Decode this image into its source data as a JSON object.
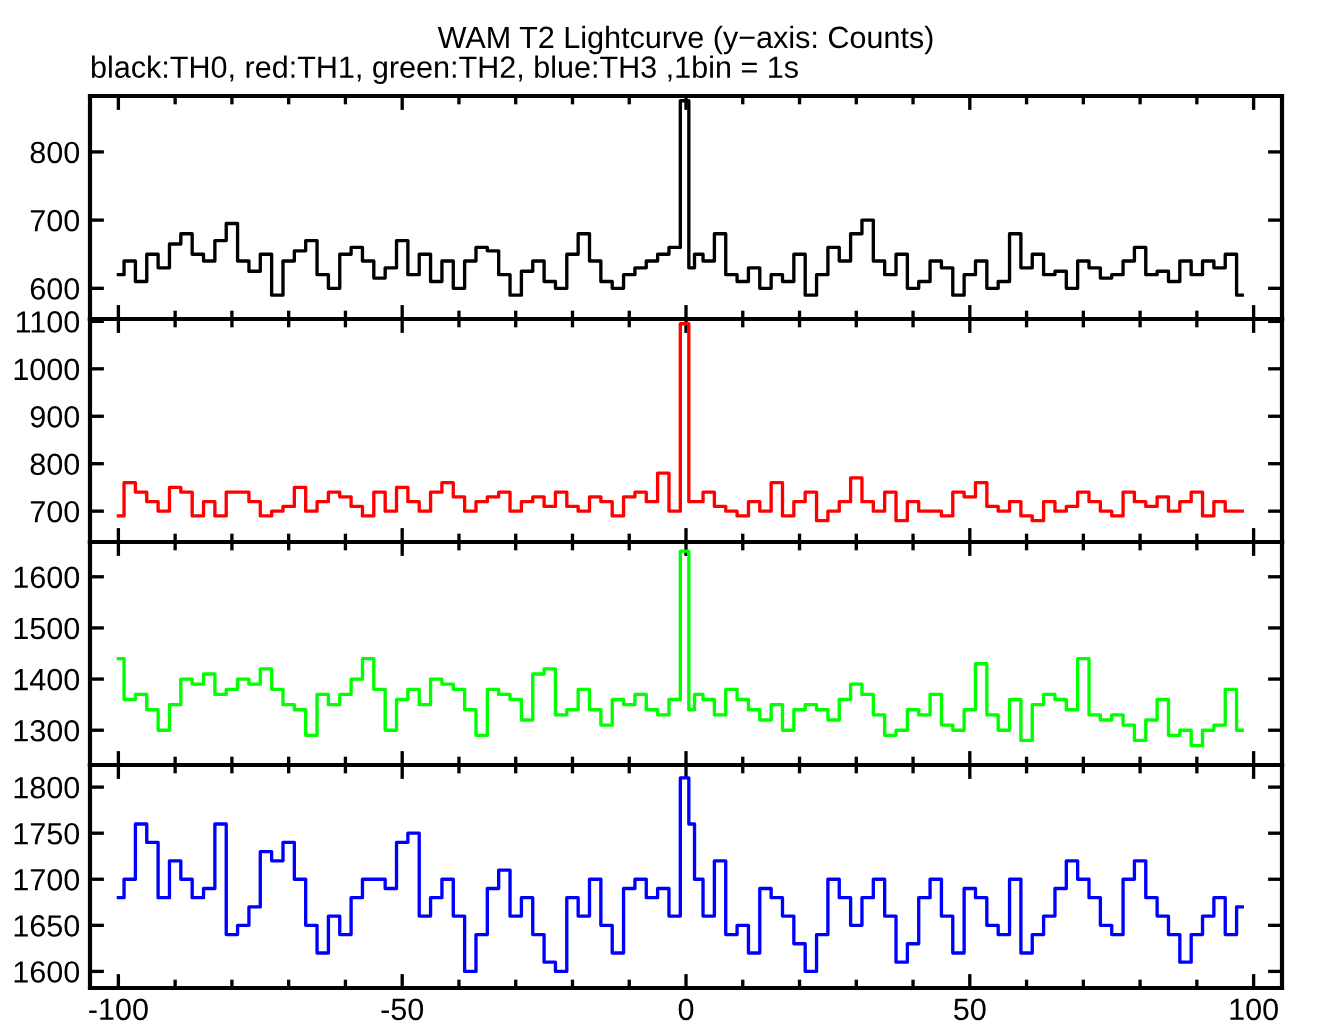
{
  "chart_data": [
    {
      "type": "step",
      "title": "WAM T2 Lightcurve (y−axis: Counts)",
      "subtitle": "black:TH0, red:TH1, green:TH2, blue:TH3 ,1bin = 1s",
      "x": [
        -100,
        -98,
        -96,
        -94,
        -92,
        -90,
        -88,
        -86,
        -84,
        -82,
        -80,
        -78,
        -76,
        -74,
        -72,
        -70,
        -68,
        -66,
        -64,
        -62,
        -60,
        -58,
        -56,
        -54,
        -52,
        -50,
        -48,
        -46,
        -44,
        -42,
        -40,
        -38,
        -36,
        -34,
        -32,
        -30,
        -28,
        -26,
        -24,
        -22,
        -20,
        -18,
        -16,
        -14,
        -12,
        -10,
        -8,
        -6,
        -4,
        -2,
        0,
        1,
        2,
        4,
        6,
        8,
        10,
        12,
        14,
        16,
        18,
        20,
        22,
        24,
        26,
        28,
        30,
        32,
        34,
        36,
        38,
        40,
        42,
        44,
        46,
        48,
        50,
        52,
        54,
        56,
        58,
        60,
        62,
        64,
        66,
        68,
        70,
        72,
        74,
        76,
        78,
        80,
        82,
        84,
        86,
        88,
        90,
        92,
        94,
        96,
        98
      ],
      "series": [
        {
          "color": "#000000",
          "values": [
            620,
            640,
            610,
            650,
            630,
            665,
            680,
            650,
            640,
            670,
            695,
            640,
            625,
            650,
            590,
            640,
            655,
            670,
            620,
            600,
            650,
            660,
            640,
            615,
            630,
            670,
            620,
            650,
            610,
            640,
            600,
            640,
            660,
            655,
            620,
            590,
            625,
            640,
            610,
            600,
            650,
            680,
            640,
            610,
            600,
            620,
            630,
            640,
            650,
            660,
            875,
            630,
            650,
            640,
            680,
            620,
            610,
            630,
            600,
            620,
            610,
            650,
            590,
            620,
            660,
            640,
            680,
            700,
            640,
            620,
            650,
            600,
            610,
            640,
            630,
            590,
            620,
            640,
            600,
            610,
            680,
            630,
            650,
            620,
            625,
            600,
            640,
            630,
            615,
            620,
            640,
            660,
            620,
            625,
            610,
            640,
            620,
            640,
            630,
            650,
            590
          ]
        }
      ],
      "xlim": [
        -105,
        105
      ],
      "ylim": [
        555,
        882
      ],
      "yticks": [
        600,
        700,
        800
      ],
      "xticks": [
        -100,
        {
          "value": -90,
          "label": null
        },
        {
          "value": -80,
          "label": null
        },
        {
          "value": -70,
          "label": null
        },
        {
          "value": -60,
          "label": null
        },
        -50,
        {
          "value": -40,
          "label": null
        },
        {
          "value": -30,
          "label": null
        },
        {
          "value": -20,
          "label": null
        },
        {
          "value": -10,
          "label": null
        },
        0,
        {
          "value": 10,
          "label": null
        },
        {
          "value": 20,
          "label": null
        },
        {
          "value": 30,
          "label": null
        },
        {
          "value": 40,
          "label": null
        },
        50,
        {
          "value": 60,
          "label": null
        },
        {
          "value": 70,
          "label": null
        },
        {
          "value": 80,
          "label": null
        },
        {
          "value": 90,
          "label": null
        },
        100
      ],
      "tick_labels": "y"
    },
    {
      "type": "step",
      "x": [
        -100,
        -98,
        -96,
        -94,
        -92,
        -90,
        -88,
        -86,
        -84,
        -82,
        -80,
        -78,
        -76,
        -74,
        -72,
        -70,
        -68,
        -66,
        -64,
        -62,
        -60,
        -58,
        -56,
        -54,
        -52,
        -50,
        -48,
        -46,
        -44,
        -42,
        -40,
        -38,
        -36,
        -34,
        -32,
        -30,
        -28,
        -26,
        -24,
        -22,
        -20,
        -18,
        -16,
        -14,
        -12,
        -10,
        -8,
        -6,
        -4,
        -2,
        0,
        1,
        2,
        4,
        6,
        8,
        10,
        12,
        14,
        16,
        18,
        20,
        22,
        24,
        26,
        28,
        30,
        32,
        34,
        36,
        38,
        40,
        42,
        44,
        46,
        48,
        50,
        52,
        54,
        56,
        58,
        60,
        62,
        64,
        66,
        68,
        70,
        72,
        74,
        76,
        78,
        80,
        82,
        84,
        86,
        88,
        90,
        92,
        94,
        96,
        98
      ],
      "series": [
        {
          "color": "#ff0000",
          "values": [
            690,
            760,
            740,
            720,
            700,
            750,
            740,
            690,
            720,
            690,
            740,
            740,
            720,
            690,
            700,
            710,
            750,
            700,
            720,
            740,
            730,
            710,
            690,
            740,
            700,
            750,
            720,
            700,
            740,
            760,
            730,
            700,
            720,
            730,
            740,
            700,
            720,
            730,
            710,
            740,
            710,
            700,
            730,
            720,
            690,
            730,
            740,
            720,
            780,
            700,
            1095,
            720,
            720,
            740,
            710,
            700,
            690,
            720,
            700,
            760,
            690,
            720,
            740,
            680,
            700,
            720,
            770,
            720,
            700,
            740,
            680,
            720,
            700,
            700,
            690,
            740,
            730,
            760,
            710,
            700,
            720,
            690,
            680,
            720,
            700,
            710,
            740,
            720,
            700,
            690,
            740,
            720,
            710,
            730,
            700,
            720,
            740,
            690,
            720,
            700,
            700
          ]
        }
      ],
      "xlim": [
        -105,
        105
      ],
      "ylim": [
        635,
        1105
      ],
      "yticks": [
        700,
        800,
        900,
        1000,
        1100
      ],
      "xticks": [
        -100,
        {
          "value": -90,
          "label": null
        },
        {
          "value": -80,
          "label": null
        },
        {
          "value": -70,
          "label": null
        },
        {
          "value": -60,
          "label": null
        },
        -50,
        {
          "value": -40,
          "label": null
        },
        {
          "value": -30,
          "label": null
        },
        {
          "value": -20,
          "label": null
        },
        {
          "value": -10,
          "label": null
        },
        0,
        {
          "value": 10,
          "label": null
        },
        {
          "value": 20,
          "label": null
        },
        {
          "value": 30,
          "label": null
        },
        {
          "value": 40,
          "label": null
        },
        50,
        {
          "value": 60,
          "label": null
        },
        {
          "value": 70,
          "label": null
        },
        {
          "value": 80,
          "label": null
        },
        {
          "value": 90,
          "label": null
        },
        100
      ],
      "tick_labels": "y"
    },
    {
      "type": "step",
      "x": [
        -100,
        -98,
        -96,
        -94,
        -92,
        -90,
        -88,
        -86,
        -84,
        -82,
        -80,
        -78,
        -76,
        -74,
        -72,
        -70,
        -68,
        -66,
        -64,
        -62,
        -60,
        -58,
        -56,
        -54,
        -52,
        -50,
        -48,
        -46,
        -44,
        -42,
        -40,
        -38,
        -36,
        -34,
        -32,
        -30,
        -28,
        -26,
        -24,
        -22,
        -20,
        -18,
        -16,
        -14,
        -12,
        -10,
        -8,
        -6,
        -4,
        -2,
        0,
        1,
        2,
        4,
        6,
        8,
        10,
        12,
        14,
        16,
        18,
        20,
        22,
        24,
        26,
        28,
        30,
        32,
        34,
        36,
        38,
        40,
        42,
        44,
        46,
        48,
        50,
        52,
        54,
        56,
        58,
        60,
        62,
        64,
        66,
        68,
        70,
        72,
        74,
        76,
        78,
        80,
        82,
        84,
        86,
        88,
        90,
        92,
        94,
        96,
        98
      ],
      "series": [
        {
          "color": "#00ff00",
          "values": [
            1440,
            1360,
            1370,
            1340,
            1300,
            1350,
            1400,
            1390,
            1410,
            1370,
            1380,
            1400,
            1390,
            1420,
            1380,
            1350,
            1340,
            1290,
            1370,
            1350,
            1370,
            1400,
            1440,
            1380,
            1300,
            1360,
            1380,
            1350,
            1400,
            1390,
            1380,
            1340,
            1290,
            1380,
            1370,
            1360,
            1320,
            1410,
            1420,
            1330,
            1340,
            1380,
            1340,
            1310,
            1360,
            1350,
            1370,
            1340,
            1330,
            1360,
            1650,
            1340,
            1370,
            1360,
            1330,
            1380,
            1360,
            1340,
            1320,
            1350,
            1300,
            1340,
            1350,
            1340,
            1320,
            1360,
            1390,
            1370,
            1330,
            1290,
            1300,
            1340,
            1330,
            1370,
            1310,
            1300,
            1340,
            1430,
            1330,
            1300,
            1360,
            1280,
            1350,
            1370,
            1360,
            1340,
            1440,
            1330,
            1320,
            1330,
            1310,
            1280,
            1320,
            1360,
            1290,
            1300,
            1270,
            1300,
            1310,
            1380,
            1300
          ]
        }
      ],
      "xlim": [
        -105,
        105
      ],
      "ylim": [
        1232,
        1668
      ],
      "yticks": [
        1300,
        1400,
        1500,
        1600
      ],
      "xticks": [
        -100,
        {
          "value": -90,
          "label": null
        },
        {
          "value": -80,
          "label": null
        },
        {
          "value": -70,
          "label": null
        },
        {
          "value": -60,
          "label": null
        },
        -50,
        {
          "value": -40,
          "label": null
        },
        {
          "value": -30,
          "label": null
        },
        {
          "value": -20,
          "label": null
        },
        {
          "value": -10,
          "label": null
        },
        0,
        {
          "value": 10,
          "label": null
        },
        {
          "value": 20,
          "label": null
        },
        {
          "value": 30,
          "label": null
        },
        {
          "value": 40,
          "label": null
        },
        50,
        {
          "value": 60,
          "label": null
        },
        {
          "value": 70,
          "label": null
        },
        {
          "value": 80,
          "label": null
        },
        {
          "value": 90,
          "label": null
        },
        100
      ],
      "tick_labels": "y"
    },
    {
      "type": "step",
      "x": [
        -100,
        -98,
        -96,
        -94,
        -92,
        -90,
        -88,
        -86,
        -84,
        -82,
        -80,
        -78,
        -76,
        -74,
        -72,
        -70,
        -68,
        -66,
        -64,
        -62,
        -60,
        -58,
        -56,
        -54,
        -52,
        -50,
        -48,
        -46,
        -44,
        -42,
        -40,
        -38,
        -36,
        -34,
        -32,
        -30,
        -28,
        -26,
        -24,
        -22,
        -20,
        -18,
        -16,
        -14,
        -12,
        -10,
        -8,
        -6,
        -4,
        -2,
        0,
        1,
        2,
        4,
        6,
        8,
        10,
        12,
        14,
        16,
        18,
        20,
        22,
        24,
        26,
        28,
        30,
        32,
        34,
        36,
        38,
        40,
        42,
        44,
        46,
        48,
        50,
        52,
        54,
        56,
        58,
        60,
        62,
        64,
        66,
        68,
        70,
        72,
        74,
        76,
        78,
        80,
        82,
        84,
        86,
        88,
        90,
        92,
        94,
        96,
        98
      ],
      "series": [
        {
          "color": "#0000ff",
          "values": [
            1680,
            1700,
            1760,
            1740,
            1680,
            1720,
            1700,
            1680,
            1690,
            1760,
            1640,
            1650,
            1670,
            1730,
            1720,
            1740,
            1700,
            1650,
            1620,
            1660,
            1640,
            1680,
            1700,
            1700,
            1690,
            1740,
            1750,
            1660,
            1680,
            1700,
            1660,
            1600,
            1640,
            1690,
            1710,
            1660,
            1680,
            1640,
            1610,
            1600,
            1680,
            1660,
            1700,
            1650,
            1620,
            1690,
            1700,
            1680,
            1690,
            1660,
            1810,
            1760,
            1700,
            1660,
            1720,
            1640,
            1650,
            1620,
            1690,
            1680,
            1660,
            1630,
            1600,
            1640,
            1700,
            1680,
            1650,
            1680,
            1700,
            1660,
            1610,
            1630,
            1680,
            1700,
            1660,
            1620,
            1690,
            1680,
            1650,
            1640,
            1700,
            1620,
            1640,
            1660,
            1690,
            1720,
            1700,
            1680,
            1650,
            1640,
            1700,
            1720,
            1680,
            1660,
            1640,
            1610,
            1640,
            1660,
            1680,
            1640,
            1670
          ]
        }
      ],
      "xlim": [
        -105,
        105
      ],
      "ylim": [
        1582,
        1824
      ],
      "yticks": [
        1600,
        1650,
        1700,
        1750,
        1800
      ],
      "xticks": [
        -100,
        {
          "value": -90,
          "label": null
        },
        {
          "value": -80,
          "label": null
        },
        {
          "value": -70,
          "label": null
        },
        {
          "value": -60,
          "label": null
        },
        -50,
        {
          "value": -40,
          "label": null
        },
        {
          "value": -30,
          "label": null
        },
        {
          "value": -20,
          "label": null
        },
        {
          "value": -10,
          "label": null
        },
        0,
        {
          "value": 10,
          "label": null
        },
        {
          "value": 20,
          "label": null
        },
        {
          "value": 30,
          "label": null
        },
        {
          "value": 40,
          "label": null
        },
        50,
        {
          "value": 60,
          "label": null
        },
        {
          "value": 70,
          "label": null
        },
        {
          "value": 80,
          "label": null
        },
        {
          "value": 90,
          "label": null
        },
        100
      ]
    }
  ]
}
